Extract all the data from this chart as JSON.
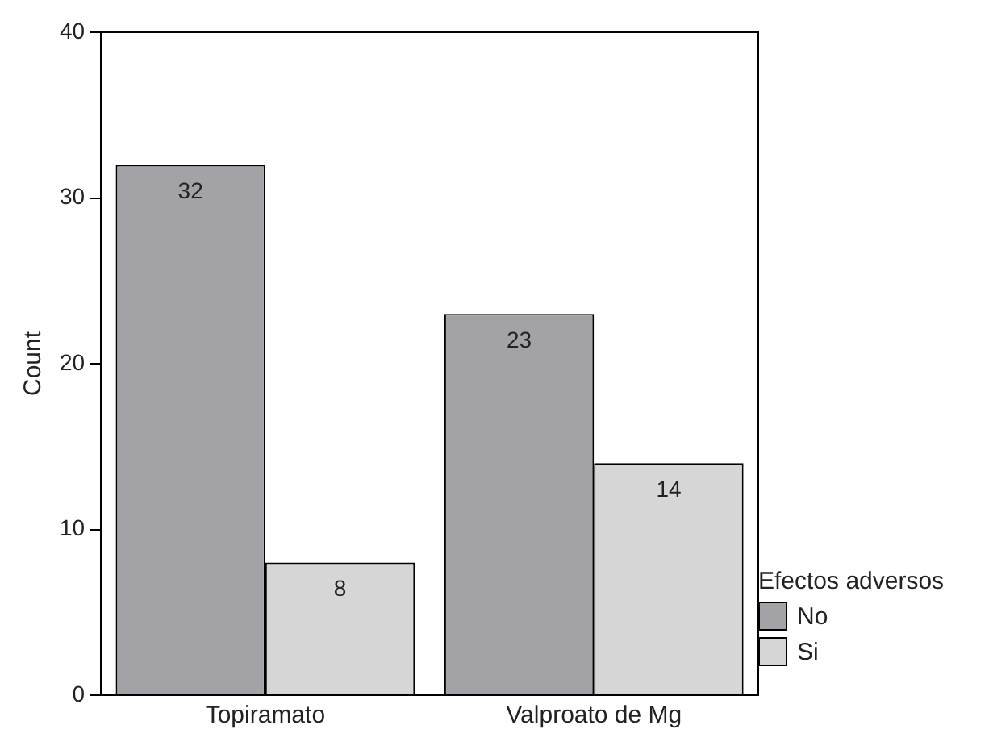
{
  "chart_data": {
    "type": "bar",
    "categories": [
      "Topiramato",
      "Valproato de Mg"
    ],
    "series": [
      {
        "name": "No",
        "color": "#a3a3a7",
        "values": [
          32,
          23
        ]
      },
      {
        "name": "Si",
        "color": "#d6d6d6",
        "values": [
          8,
          14
        ]
      }
    ],
    "ylabel": "Count",
    "legend_title": "Efectos adversos",
    "legend": "right",
    "ylim": [
      0,
      40
    ],
    "yticks": [
      0,
      10,
      20,
      30,
      40
    ],
    "data_labels": true,
    "grid": false
  }
}
